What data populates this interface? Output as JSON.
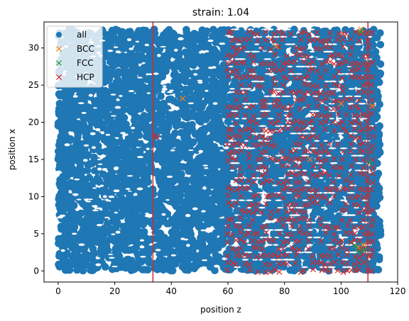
{
  "chart_data": {
    "type": "scatter",
    "title": "strain: 1.04",
    "xlabel": "position z",
    "ylabel": "position x",
    "xlim": [
      -5,
      120
    ],
    "ylim": [
      -1.5,
      33.5
    ],
    "xticks": [
      0,
      20,
      40,
      60,
      80,
      100,
      120
    ],
    "yticks": [
      0,
      5,
      10,
      15,
      20,
      25,
      30
    ],
    "grid": false,
    "legend_position": "top-left",
    "vlines": [
      {
        "x": 33.5,
        "color": "#d62728"
      },
      {
        "x": 109.5,
        "color": "#d62728"
      }
    ],
    "series": [
      {
        "name": "all",
        "marker": "circle",
        "color": "#1f77b4",
        "region": {
          "z": [
            0,
            114
          ],
          "x": [
            0,
            32.5
          ]
        },
        "description_values": {
          "z_min": 0,
          "z_max": 114,
          "x_min": 0,
          "x_max": 32.5
        }
      },
      {
        "name": "BCC",
        "marker": "x",
        "color": "#ff7f0e",
        "points": [
          [
            44,
            23.2
          ],
          [
            107,
            32.5
          ],
          [
            111,
            22.2
          ],
          [
            100,
            22.5
          ],
          [
            106,
            3.2
          ],
          [
            108,
            3.5
          ],
          [
            89,
            15.0
          ],
          [
            77,
            30.2
          ]
        ]
      },
      {
        "name": "FCC",
        "marker": "x",
        "color": "#2ca02c",
        "points": [
          [
            106,
            2.6
          ],
          [
            108,
            2.8
          ],
          [
            105,
            3.4
          ],
          [
            107,
            32.2
          ],
          [
            110,
            14.5
          ]
        ]
      },
      {
        "name": "HCP",
        "marker": "x",
        "color": "#d62728",
        "region": {
          "z": [
            59,
            111
          ],
          "x": [
            0,
            32.5
          ]
        },
        "extra_points": [
          [
            34,
            18.2
          ],
          [
            35,
            18.0
          ]
        ]
      }
    ]
  }
}
